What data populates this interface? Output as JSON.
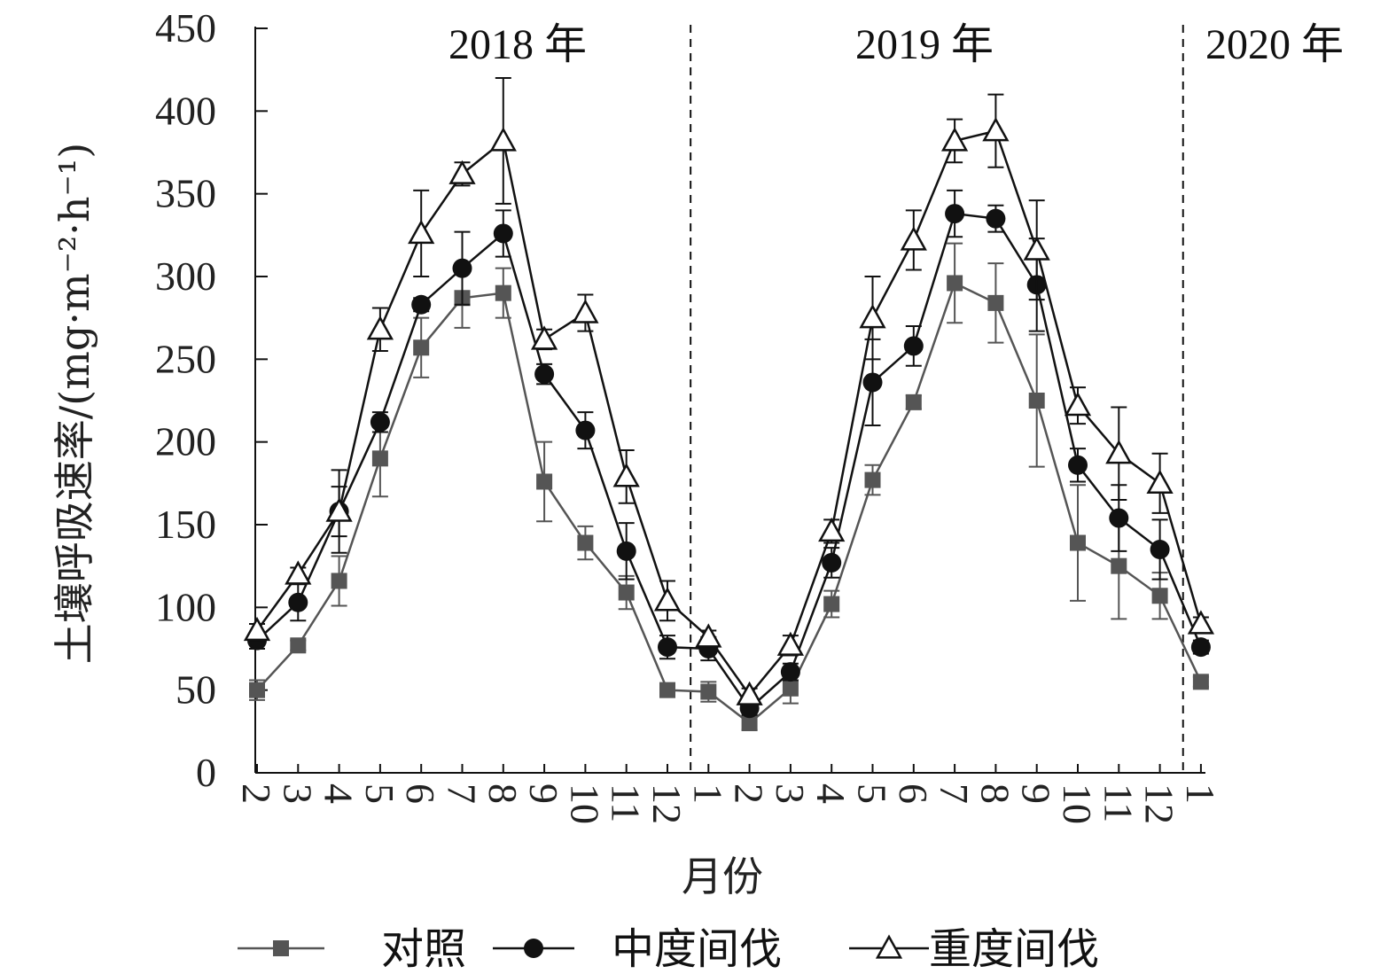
{
  "chart_data": {
    "type": "line",
    "ylabel": "土壤呼吸速率/(mg·m⁻²·h⁻¹)",
    "xlabel": "月份",
    "ylim": [
      0,
      450
    ],
    "yticks": [
      0,
      50,
      100,
      150,
      200,
      250,
      300,
      350,
      400,
      450
    ],
    "categories": [
      "2",
      "3",
      "4",
      "5",
      "6",
      "7",
      "8",
      "9",
      "10",
      "11",
      "12",
      "1",
      "2",
      "3",
      "4",
      "5",
      "6",
      "7",
      "8",
      "9",
      "10",
      "11",
      "12",
      "1"
    ],
    "year_labels": [
      "2018 年",
      "2019 年",
      "2020 年"
    ],
    "series": [
      {
        "name": "对照",
        "marker": "square",
        "color": "#555555",
        "values": [
          50,
          77,
          116,
          190,
          257,
          287,
          290,
          176,
          139,
          109,
          50,
          49,
          30,
          51,
          102,
          177,
          224,
          296,
          284,
          225,
          139,
          125,
          107,
          55
        ],
        "errors": [
          6,
          3,
          15,
          23,
          18,
          18,
          15,
          24,
          10,
          10,
          2,
          6,
          4,
          9,
          8,
          9,
          4,
          24,
          24,
          40,
          35,
          32,
          14,
          3
        ]
      },
      {
        "name": "中度间伐",
        "marker": "circle",
        "color": "#111111",
        "values": [
          80,
          103,
          158,
          212,
          283,
          305,
          326,
          241,
          207,
          134,
          76,
          75,
          39,
          61,
          127,
          236,
          258,
          338,
          335,
          295,
          186,
          154,
          135,
          76
        ],
        "errors": [
          5,
          11,
          15,
          6,
          4,
          22,
          14,
          6,
          11,
          17,
          7,
          7,
          4,
          5,
          9,
          26,
          12,
          14,
          8,
          28,
          10,
          20,
          18,
          4
        ]
      },
      {
        "name": "重度间伐",
        "marker": "triangle",
        "color": "#111111",
        "values": [
          86,
          120,
          158,
          268,
          326,
          362,
          382,
          262,
          278,
          179,
          104,
          82,
          47,
          77,
          146,
          275,
          322,
          382,
          388,
          316,
          222,
          193,
          175,
          90
        ],
        "errors": [
          4,
          4,
          25,
          13,
          26,
          7,
          38,
          6,
          11,
          16,
          12,
          4,
          4,
          6,
          7,
          25,
          18,
          13,
          22,
          30,
          11,
          28,
          18,
          4
        ]
      }
    ]
  }
}
